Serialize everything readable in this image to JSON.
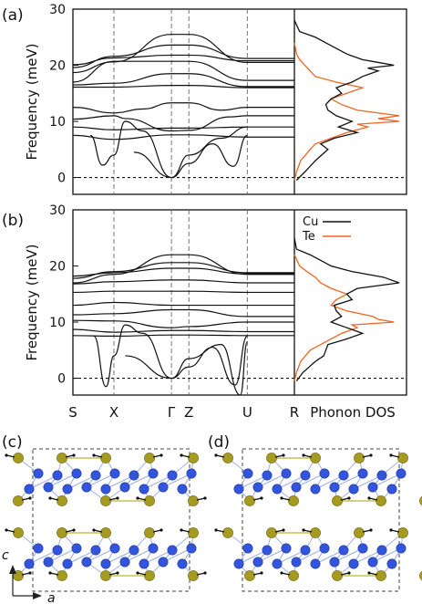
{
  "panels": {
    "a": "(a)",
    "b": "(b)",
    "c": "(c)",
    "d": "(d)"
  },
  "chart_data": [
    {
      "type": "line",
      "panel": "(a)",
      "ylabel": "Frequency (meV)",
      "ylim": [
        -3,
        30
      ],
      "yticks": [
        0,
        10,
        20,
        30
      ],
      "kpoints": [
        "S",
        "X",
        "Γ",
        "Z",
        "U",
        "R"
      ],
      "kpos": [
        0,
        0.235,
        0.565,
        0.665,
        1.0,
        1.27
      ],
      "dos_label": "Phonon DOS",
      "legend": [
        {
          "name": "Cu",
          "color": "#111111"
        },
        {
          "name": "Te",
          "color": "#f26522"
        }
      ],
      "bands": [
        [
          [
            0,
            18.7
          ],
          [
            0.235,
            20.6
          ],
          [
            0.565,
            25.5
          ],
          [
            0.665,
            25.5
          ],
          [
            1.0,
            20.5
          ],
          [
            1.27,
            20.5
          ]
        ],
        [
          [
            0,
            19.6
          ],
          [
            0.235,
            21.6
          ],
          [
            0.565,
            23.6
          ],
          [
            0.665,
            23.6
          ],
          [
            1.0,
            21.2
          ],
          [
            1.27,
            21.2
          ]
        ],
        [
          [
            0,
            20.1
          ],
          [
            0.235,
            21.3
          ],
          [
            0.565,
            21.8
          ],
          [
            0.665,
            21.8
          ],
          [
            1.0,
            20.8
          ],
          [
            1.27,
            20.8
          ]
        ],
        [
          [
            0,
            17.0
          ],
          [
            0.235,
            20.7
          ],
          [
            0.565,
            20.7
          ],
          [
            0.665,
            20.7
          ],
          [
            1.0,
            17.3
          ],
          [
            1.27,
            17.3
          ]
        ],
        [
          [
            0,
            16.5
          ],
          [
            0.235,
            16.8
          ],
          [
            0.565,
            18.5
          ],
          [
            0.665,
            18.5
          ],
          [
            1.0,
            16.2
          ],
          [
            1.27,
            16.2
          ]
        ],
        [
          [
            0,
            16.1
          ],
          [
            0.235,
            16.1
          ],
          [
            0.565,
            16.4
          ],
          [
            0.665,
            16.4
          ],
          [
            1.0,
            16.0
          ],
          [
            1.27,
            16.0
          ]
        ],
        [
          [
            0,
            12.5
          ],
          [
            0.235,
            11.5
          ],
          [
            0.4,
            12.2
          ],
          [
            0.565,
            13.3
          ],
          [
            0.665,
            13.3
          ],
          [
            0.85,
            12.0
          ],
          [
            1.0,
            12.5
          ],
          [
            1.27,
            12.5
          ]
        ],
        [
          [
            0,
            10.4
          ],
          [
            0.235,
            11.0
          ],
          [
            0.3,
            10.5
          ],
          [
            0.565,
            8.3
          ],
          [
            0.665,
            8.4
          ],
          [
            0.9,
            10.8
          ],
          [
            1.0,
            11.0
          ],
          [
            1.27,
            11.0
          ]
        ],
        [
          [
            0,
            9.0
          ],
          [
            0.235,
            8.5
          ],
          [
            0.565,
            8.8
          ],
          [
            0.665,
            8.8
          ],
          [
            1.0,
            9.0
          ],
          [
            1.27,
            9.0
          ]
        ],
        [
          [
            0,
            7.5
          ],
          [
            0.235,
            6.8
          ],
          [
            0.565,
            7.6
          ],
          [
            0.665,
            7.6
          ],
          [
            1.0,
            7.2
          ],
          [
            1.27,
            7.2
          ]
        ],
        [
          [
            0.1,
            7.5
          ],
          [
            0.17,
            2.2
          ],
          [
            0.235,
            4.0
          ],
          [
            0.3,
            10.0
          ],
          [
            0.4,
            8.3
          ],
          [
            0.565,
            0
          ],
          [
            0.665,
            2.5
          ],
          [
            0.8,
            6.0
          ],
          [
            0.92,
            2.0
          ],
          [
            1.0,
            7.5
          ]
        ],
        [
          [
            0.35,
            4.5
          ],
          [
            0.565,
            0
          ],
          [
            0.665,
            4.0
          ],
          [
            0.85,
            7.0
          ],
          [
            1.0,
            9.0
          ]
        ]
      ],
      "dos": {
        "Cu": [
          [
            -0.5,
            0.02
          ],
          [
            1,
            0.1
          ],
          [
            3,
            0.2
          ],
          [
            5,
            0.32
          ],
          [
            6,
            0.25
          ],
          [
            7,
            0.38
          ],
          [
            8,
            0.6
          ],
          [
            9,
            0.42
          ],
          [
            10,
            0.55
          ],
          [
            11,
            0.4
          ],
          [
            12,
            0.32
          ],
          [
            13,
            0.3
          ],
          [
            14,
            0.35
          ],
          [
            15,
            0.45
          ],
          [
            16,
            0.4
          ],
          [
            17,
            0.55
          ],
          [
            18,
            0.65
          ],
          [
            19,
            0.8
          ],
          [
            19.5,
            0.7
          ],
          [
            20,
            0.95
          ],
          [
            20.5,
            0.8
          ],
          [
            21,
            0.65
          ],
          [
            22,
            0.5
          ],
          [
            23,
            0.4
          ],
          [
            24,
            0.3
          ],
          [
            25,
            0.2
          ],
          [
            26,
            0.05
          ],
          [
            28,
            0
          ]
        ],
        "Te": [
          [
            -0.5,
            0
          ],
          [
            1,
            0.02
          ],
          [
            3,
            0.06
          ],
          [
            5,
            0.15
          ],
          [
            6,
            0.2
          ],
          [
            7,
            0.35
          ],
          [
            8,
            0.5
          ],
          [
            9,
            0.7
          ],
          [
            9.5,
            0.6
          ],
          [
            10,
            1.0
          ],
          [
            10.5,
            0.8
          ],
          [
            11,
            1.0
          ],
          [
            12,
            0.6
          ],
          [
            13,
            0.45
          ],
          [
            14,
            0.35
          ],
          [
            15,
            0.5
          ],
          [
            16,
            0.65
          ],
          [
            17,
            0.4
          ],
          [
            18,
            0.2
          ],
          [
            19,
            0.15
          ],
          [
            20,
            0.1
          ],
          [
            21,
            0.05
          ],
          [
            22,
            0.02
          ],
          [
            24,
            0
          ]
        ]
      }
    },
    {
      "type": "line",
      "panel": "(b)",
      "ylabel": "Frequency (meV)",
      "ylim": [
        -3,
        30
      ],
      "yticks": [
        0,
        10,
        20,
        30
      ],
      "kpoints": [
        "S",
        "X",
        "Γ",
        "Z",
        "U",
        "R"
      ],
      "kpos": [
        0,
        0.235,
        0.565,
        0.665,
        1.0,
        1.27
      ],
      "dos_label": "Phonon DOS",
      "legend": [
        {
          "name": "Cu",
          "color": "#111111"
        },
        {
          "name": "Te",
          "color": "#f26522"
        }
      ],
      "bands": [
        [
          [
            0,
            17.0
          ],
          [
            0.235,
            18.5
          ],
          [
            0.565,
            22.0
          ],
          [
            0.665,
            22.0
          ],
          [
            1.0,
            18.5
          ],
          [
            1.27,
            18.5
          ]
        ],
        [
          [
            0,
            17.8
          ],
          [
            0.235,
            19.0
          ],
          [
            0.565,
            20.6
          ],
          [
            0.665,
            20.6
          ],
          [
            1.0,
            18.8
          ],
          [
            1.27,
            18.8
          ]
        ],
        [
          [
            0,
            18.2
          ],
          [
            0.235,
            18.8
          ],
          [
            0.565,
            19.6
          ],
          [
            0.665,
            19.6
          ],
          [
            1.0,
            18.6
          ],
          [
            1.27,
            18.6
          ]
        ],
        [
          [
            0,
            16.8
          ],
          [
            0.235,
            17.2
          ],
          [
            0.565,
            17.5
          ],
          [
            0.665,
            17.5
          ],
          [
            1.0,
            17.0
          ],
          [
            1.27,
            17.0
          ]
        ],
        [
          [
            0,
            15.3
          ],
          [
            0.235,
            15.5
          ],
          [
            0.565,
            15.5
          ],
          [
            0.665,
            15.5
          ],
          [
            1.0,
            15.3
          ],
          [
            1.27,
            15.3
          ]
        ],
        [
          [
            0,
            13.0
          ],
          [
            0.235,
            13.5
          ],
          [
            0.565,
            13.0
          ],
          [
            0.665,
            13.0
          ],
          [
            1.0,
            13.0
          ],
          [
            1.27,
            13.0
          ]
        ],
        [
          [
            0,
            11.3
          ],
          [
            0.235,
            11.5
          ],
          [
            0.565,
            12.2
          ],
          [
            0.665,
            12.2
          ],
          [
            1.0,
            11.0
          ],
          [
            1.27,
            11.0
          ]
        ],
        [
          [
            0,
            10.3
          ],
          [
            0.235,
            10.2
          ],
          [
            0.565,
            9.0
          ],
          [
            0.665,
            9.2
          ],
          [
            1.0,
            10.0
          ],
          [
            1.27,
            10.0
          ]
        ],
        [
          [
            0,
            8.7
          ],
          [
            0.235,
            8.2
          ],
          [
            0.565,
            8.5
          ],
          [
            0.665,
            8.5
          ],
          [
            1.0,
            8.3
          ],
          [
            1.27,
            8.3
          ]
        ],
        [
          [
            0,
            7.6
          ],
          [
            0.235,
            7.5
          ],
          [
            0.565,
            7.7
          ],
          [
            0.665,
            7.7
          ],
          [
            1.0,
            7.6
          ],
          [
            1.27,
            7.6
          ]
        ],
        [
          [
            0.12,
            7.5
          ],
          [
            0.19,
            -1.5
          ],
          [
            0.235,
            4.0
          ],
          [
            0.3,
            9.5
          ],
          [
            0.4,
            8.0
          ],
          [
            0.565,
            0
          ],
          [
            0.665,
            2.0
          ],
          [
            0.8,
            5.5
          ],
          [
            0.93,
            -1.2
          ],
          [
            1.0,
            7.5
          ]
        ],
        [
          [
            0.3,
            4.0
          ],
          [
            0.565,
            0
          ],
          [
            0.665,
            3.5
          ],
          [
            0.85,
            6.0
          ],
          [
            0.96,
            -3.0
          ],
          [
            1.0,
            6.5
          ]
        ]
      ],
      "dos": {
        "Cu": [
          [
            -0.5,
            0.02
          ],
          [
            1,
            0.08
          ],
          [
            3,
            0.2
          ],
          [
            4,
            0.28
          ],
          [
            5,
            0.3
          ],
          [
            6,
            0.32
          ],
          [
            7,
            0.5
          ],
          [
            8,
            0.65
          ],
          [
            9,
            0.5
          ],
          [
            10,
            0.35
          ],
          [
            11,
            0.45
          ],
          [
            12,
            0.4
          ],
          [
            13,
            0.38
          ],
          [
            14,
            0.55
          ],
          [
            15,
            0.5
          ],
          [
            16,
            0.6
          ],
          [
            17,
            1.0
          ],
          [
            18,
            0.85
          ],
          [
            19,
            0.55
          ],
          [
            20,
            0.35
          ],
          [
            21,
            0.25
          ],
          [
            22,
            0.15
          ],
          [
            23,
            0.02
          ],
          [
            25,
            0
          ]
        ],
        "Te": [
          [
            -0.5,
            0
          ],
          [
            1,
            0.02
          ],
          [
            3,
            0.06
          ],
          [
            5,
            0.15
          ],
          [
            6,
            0.25
          ],
          [
            7,
            0.35
          ],
          [
            8,
            0.45
          ],
          [
            9,
            0.6
          ],
          [
            9.5,
            0.55
          ],
          [
            10,
            0.95
          ],
          [
            10.5,
            0.8
          ],
          [
            11,
            0.75
          ],
          [
            12,
            0.5
          ],
          [
            13,
            0.35
          ],
          [
            14,
            0.4
          ],
          [
            15,
            0.5
          ],
          [
            16,
            0.35
          ],
          [
            17,
            0.25
          ],
          [
            18,
            0.2
          ],
          [
            19,
            0.12
          ],
          [
            20,
            0.05
          ],
          [
            22,
            0
          ]
        ]
      }
    }
  ],
  "structures": {
    "c": {
      "axis_c": "c",
      "axis_a": "a"
    },
    "d": {},
    "colors": {
      "cu": "#3355dd",
      "te": "#a69a20",
      "bond_te": "#c8c050",
      "bond_cu": "#9fb2e8",
      "box": "#444444"
    }
  }
}
